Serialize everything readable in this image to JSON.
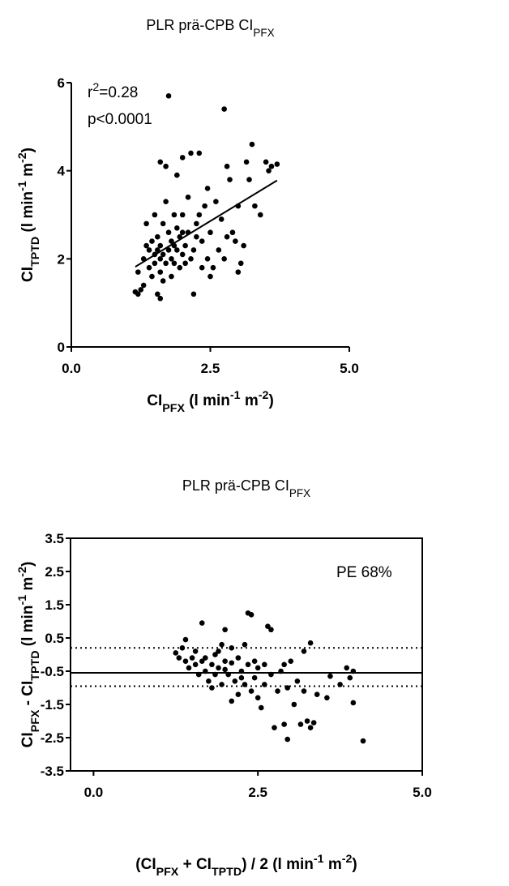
{
  "chart_data": [
    {
      "type": "scatter",
      "title": [
        {
          "text": "PLR prä-CPB CI"
        },
        {
          "text": "PFX",
          "pos": "sub"
        }
      ],
      "xlabel": [
        {
          "text": "CI"
        },
        {
          "text": "PFX",
          "pos": "sub"
        },
        {
          "text": " (l min"
        },
        {
          "text": "-1",
          "pos": "sup"
        },
        {
          "text": " m"
        },
        {
          "text": "-2",
          "pos": "sup"
        },
        {
          "text": ")"
        }
      ],
      "ylabel": [
        {
          "text": "CI"
        },
        {
          "text": "TPTD",
          "pos": "sub"
        },
        {
          "text": " (l min"
        },
        {
          "text": "-1",
          "pos": "sup"
        },
        {
          "text": " m"
        },
        {
          "text": "-2",
          "pos": "sup"
        },
        {
          "text": ")"
        }
      ],
      "annotations": [
        [
          {
            "text": "r"
          },
          {
            "text": "2",
            "pos": "sup"
          },
          {
            "text": "=0.28"
          }
        ],
        [
          {
            "text": "p<0.0001"
          }
        ]
      ],
      "xlim": [
        0,
        5
      ],
      "ylim": [
        0,
        6
      ],
      "xticks": [
        {
          "value": 0,
          "label": "0.0"
        },
        {
          "value": 2.5,
          "label": "2.5"
        },
        {
          "value": 5,
          "label": "5.0"
        }
      ],
      "yticks": [
        0,
        2,
        4,
        6
      ],
      "frame": false,
      "color": "#000000",
      "x": [
        1.15,
        1.2,
        1.25,
        1.3,
        1.2,
        1.3,
        1.35,
        1.35,
        1.4,
        1.4,
        1.45,
        1.45,
        1.5,
        1.5,
        1.5,
        1.55,
        1.55,
        1.6,
        1.6,
        1.6,
        1.6,
        1.6,
        1.65,
        1.65,
        1.7,
        1.7,
        1.7,
        1.75,
        1.75,
        1.75,
        1.8,
        1.8,
        1.8,
        1.85,
        1.85,
        1.9,
        1.9,
        1.9,
        1.95,
        1.95,
        2.0,
        2.0,
        2.0,
        2.05,
        2.05,
        2.1,
        2.1,
        2.15,
        2.15,
        2.2,
        2.2,
        2.25,
        2.3,
        2.3,
        2.35,
        2.35,
        2.4,
        2.45,
        2.45,
        2.5,
        2.5,
        2.55,
        2.6,
        2.65,
        2.7,
        2.75,
        2.75,
        2.8,
        2.8,
        2.85,
        2.9,
        2.95,
        3.0,
        3.0,
        3.05,
        3.1,
        3.15,
        3.2,
        3.25,
        3.3,
        3.4,
        3.5,
        3.55,
        3.6,
        3.7,
        2.0,
        1.85,
        1.65,
        2.25,
        1.55
      ],
      "y": [
        1.25,
        1.2,
        1.3,
        1.4,
        1.7,
        2.0,
        2.3,
        2.8,
        1.8,
        2.2,
        1.6,
        2.4,
        1.9,
        2.1,
        3.0,
        1.2,
        2.5,
        1.1,
        1.7,
        2.0,
        2.3,
        4.2,
        1.5,
        2.8,
        1.9,
        3.3,
        4.1,
        2.2,
        2.6,
        5.7,
        1.6,
        2.0,
        2.4,
        3.0,
        1.9,
        2.2,
        2.7,
        3.9,
        1.8,
        2.5,
        2.1,
        3.0,
        4.3,
        2.3,
        1.9,
        2.6,
        3.4,
        2.0,
        4.4,
        2.2,
        1.2,
        2.8,
        3.0,
        4.4,
        2.4,
        1.8,
        3.2,
        2.0,
        3.6,
        1.6,
        2.6,
        1.8,
        3.3,
        2.2,
        2.9,
        5.4,
        2.0,
        4.1,
        2.5,
        3.8,
        2.6,
        2.4,
        3.2,
        1.7,
        1.9,
        2.3,
        4.2,
        3.8,
        4.6,
        3.2,
        3.0,
        4.2,
        4.0,
        4.1,
        4.15,
        2.6,
        2.3,
        2.1,
        2.5,
        2.2
      ],
      "fit_line": {
        "x": [
          1.15,
          3.7
        ],
        "y": [
          1.82,
          3.78
        ]
      }
    },
    {
      "type": "scatter",
      "title": [
        {
          "text": "PLR prä-CPB CI"
        },
        {
          "text": "PFX",
          "pos": "sub"
        }
      ],
      "xlabel": [
        {
          "text": "(CI"
        },
        {
          "text": "PFX",
          "pos": "sub"
        },
        {
          "text": " + CI"
        },
        {
          "text": "TPTD",
          "pos": "sub"
        },
        {
          "text": ") / 2 (l min"
        },
        {
          "text": "-1",
          "pos": "sup"
        },
        {
          "text": " m"
        },
        {
          "text": "-2",
          "pos": "sup"
        },
        {
          "text": ")"
        }
      ],
      "ylabel": [
        {
          "text": "CI"
        },
        {
          "text": "PFX",
          "pos": "sub"
        },
        {
          "text": " - CI"
        },
        {
          "text": "TPTD",
          "pos": "sub"
        },
        {
          "text": " (l min"
        },
        {
          "text": "-1",
          "pos": "sup"
        },
        {
          "text": " m"
        },
        {
          "text": "-2",
          "pos": "sup"
        },
        {
          "text": ")"
        }
      ],
      "annotations": [
        [
          {
            "text": "PE 68%"
          }
        ]
      ],
      "xlim": [
        -0.35,
        5
      ],
      "ylim": [
        -3.5,
        3.5
      ],
      "xticks": [
        {
          "value": 0,
          "label": "0.0"
        },
        {
          "value": 2.5,
          "label": "2.5"
        },
        {
          "value": 5,
          "label": "5.0"
        }
      ],
      "yticks": [
        3.5,
        2.5,
        1.5,
        0.5,
        -0.5,
        -1.5,
        -2.5,
        -3.5
      ],
      "frame": true,
      "color": "#000000",
      "x": [
        1.25,
        1.3,
        1.35,
        1.4,
        1.4,
        1.45,
        1.5,
        1.55,
        1.6,
        1.65,
        1.65,
        1.7,
        1.75,
        1.8,
        1.8,
        1.85,
        1.9,
        1.9,
        1.95,
        2.0,
        2.0,
        2.05,
        2.1,
        2.1,
        2.15,
        2.2,
        2.2,
        2.25,
        2.3,
        2.3,
        2.35,
        2.35,
        2.4,
        2.4,
        2.45,
        2.5,
        2.5,
        2.55,
        2.6,
        2.65,
        2.7,
        2.7,
        2.75,
        2.8,
        2.85,
        2.9,
        2.95,
        2.95,
        3.0,
        3.05,
        3.1,
        3.15,
        3.2,
        3.2,
        3.25,
        3.3,
        3.3,
        3.35,
        3.4,
        3.55,
        3.6,
        3.75,
        3.85,
        3.9,
        3.95,
        3.95,
        4.1,
        1.7,
        1.85,
        2.0,
        2.1,
        2.25,
        1.55,
        2.45,
        2.6,
        2.9,
        1.95
      ],
      "y": [
        0.05,
        -0.1,
        0.2,
        0.45,
        -0.2,
        -0.4,
        -0.1,
        -0.3,
        -0.6,
        0.95,
        -0.2,
        -0.5,
        -0.8,
        -0.3,
        -1.0,
        -0.6,
        0.1,
        -0.4,
        -0.9,
        0.75,
        -0.2,
        -0.6,
        -1.4,
        0.2,
        -0.8,
        -0.1,
        -1.2,
        -0.5,
        0.3,
        -0.9,
        1.25,
        -0.3,
        1.2,
        -1.1,
        -0.7,
        -1.3,
        -0.4,
        -1.6,
        -0.9,
        0.85,
        0.75,
        -0.6,
        -2.2,
        -1.1,
        -0.5,
        -2.1,
        -2.55,
        -1.0,
        -0.2,
        -1.5,
        -0.8,
        -2.1,
        0.1,
        -1.1,
        -2.0,
        0.35,
        -2.2,
        -2.05,
        -1.2,
        -1.3,
        -0.65,
        -0.9,
        -0.4,
        -0.7,
        -1.45,
        -0.5,
        -2.6,
        -0.1,
        0.0,
        -0.45,
        -0.25,
        -0.7,
        0.1,
        -0.2,
        -0.3,
        -0.3,
        0.3
      ],
      "hlines": [
        {
          "value": 0.2,
          "style": "dotted"
        },
        {
          "value": -0.55,
          "style": "solid"
        },
        {
          "value": -0.95,
          "style": "dotted"
        }
      ]
    }
  ]
}
